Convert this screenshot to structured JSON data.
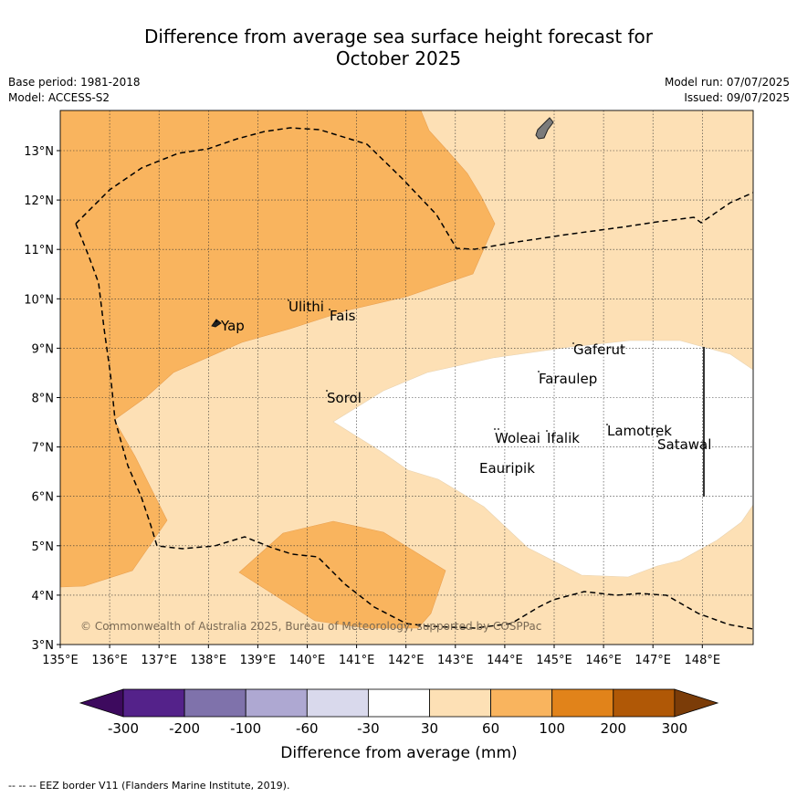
{
  "title_line1": "Difference from average sea surface height forecast for",
  "title_line2": "October 2025",
  "base_period": "Base period: 1981-2018",
  "model": "Model: ACCESS-S2",
  "model_run": "Model run: 07/07/2025",
  "issued": "Issued: 09/07/2025",
  "map": {
    "lon_labels": [
      "135°E",
      "136°E",
      "137°E",
      "138°E",
      "139°E",
      "140°E",
      "141°E",
      "142°E",
      "143°E",
      "144°E",
      "145°E",
      "146°E",
      "147°E",
      "148°E"
    ],
    "lat_labels": [
      "3°N",
      "4°N",
      "5°N",
      "6°N",
      "7°N",
      "8°N",
      "9°N",
      "10°N",
      "11°N",
      "12°N",
      "13°N"
    ],
    "places": [
      "Yap",
      "Ulithi",
      "Fais",
      "Sorol",
      "Gaferut",
      "Faraulep",
      "Woleai",
      "Ifalik",
      "Lamotrek",
      "Satawal",
      "Eauripik"
    ],
    "copyright": "© Commonwealth of Australia 2025, Bureau of Meteorology, supported by COSPPac",
    "colors": {
      "range_30_60": "#fde0b5",
      "range_60_100": "#f9b45e",
      "range_minus30_30": "#ffffff",
      "land": "#7b7b7b"
    }
  },
  "colorbar": {
    "tick_labels": [
      "-300",
      "-200",
      "-100",
      "-60",
      "-30",
      "30",
      "60",
      "100",
      "200",
      "300"
    ],
    "label": "Difference from average (mm)",
    "colors": [
      "#3d0a5e",
      "#54228a",
      "#7f72ab",
      "#aea8d2",
      "#d9d9ec",
      "#ffffff",
      "#fde0b5",
      "#f9b45e",
      "#e1831a",
      "#b05806",
      "#7b3c08"
    ]
  },
  "footer": "-- -- -- EEZ border V11 (Flanders Marine Institute, 2019)."
}
